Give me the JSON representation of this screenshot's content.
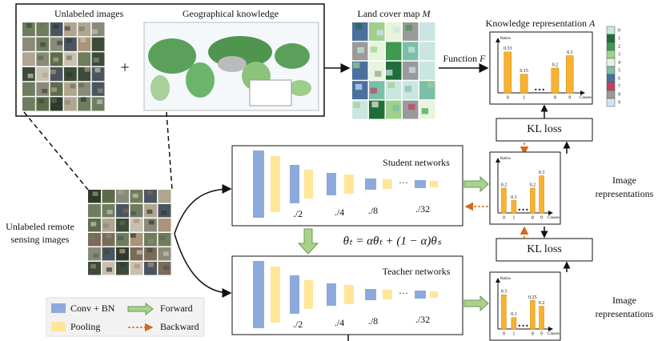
{
  "unlabeled_images": "Unlabeled images",
  "plus": "+",
  "geo_knowledge": "Geographical knowledge",
  "land_cover": {
    "title": "Land cover map ",
    "symbol": "M"
  },
  "function_label": {
    "title": "Function ",
    "symbol": "F"
  },
  "knowledge_rep": {
    "title": "Knowledge representation ",
    "symbol": "A"
  },
  "class_legend": [
    {
      "label": "0",
      "color": "#c9e6e0"
    },
    {
      "label": "1",
      "color": "#1f6e3a"
    },
    {
      "label": "2",
      "color": "#3f9a4f"
    },
    {
      "label": "3",
      "color": "#9fd08c"
    },
    {
      "label": "4",
      "color": "#e8f4dc"
    },
    {
      "label": "5",
      "color": "#7bbfa8"
    },
    {
      "label": "6",
      "color": "#4b6f9e"
    },
    {
      "label": "7",
      "color": "#c2405e"
    },
    {
      "label": "8",
      "color": "#9a9a9a"
    },
    {
      "label": "9",
      "color": "#cfe3f5"
    }
  ],
  "kl_loss": [
    "KL loss",
    "KL loss"
  ],
  "student": {
    "title": "Student networks",
    "scales": [
      "./2",
      "./4",
      "./8",
      "./32"
    ],
    "ellipsis": "…"
  },
  "teacher": {
    "title": "Teacher networks",
    "scales": [
      "./2",
      "./4",
      "./8",
      "./32"
    ],
    "ellipsis": "…"
  },
  "update_rule": "θₜ = αθₜ + (1 − α)θₛ",
  "remote_images": [
    "Unlabeled remote",
    "sensing images"
  ],
  "image_reps": [
    [
      "Image",
      "representations"
    ],
    [
      "Image",
      "representations"
    ]
  ],
  "legend": {
    "conv": "Conv + BN",
    "pool": "Pooling",
    "forward": "Forward",
    "backward": "Backward"
  },
  "charts": [
    {
      "y_label": "Ratios",
      "x_label": "Classes",
      "ellipsis": "…",
      "categories": [
        "0",
        "1",
        "8",
        "9"
      ],
      "values": [
        0.33,
        0.15,
        0.2,
        0.3
      ],
      "ylim": [
        0,
        0.4
      ],
      "color": "#f8b133"
    },
    {
      "y_label": "Ratios",
      "x_label": "Classes",
      "ellipsis": "…",
      "categories": [
        "0",
        "1",
        "8",
        "9"
      ],
      "values": [
        0.2,
        0.1,
        0.2,
        0.3
      ],
      "ylim": [
        0,
        0.4
      ],
      "color": "#f8b133"
    },
    {
      "y_label": "Ratios",
      "x_label": "Classes",
      "ellipsis": "…",
      "categories": [
        "0",
        "1",
        "8",
        "9"
      ],
      "values": [
        0.3,
        0.1,
        0.25,
        0.2
      ],
      "ylim": [
        0,
        0.4
      ],
      "color": "#f8b133"
    }
  ]
}
